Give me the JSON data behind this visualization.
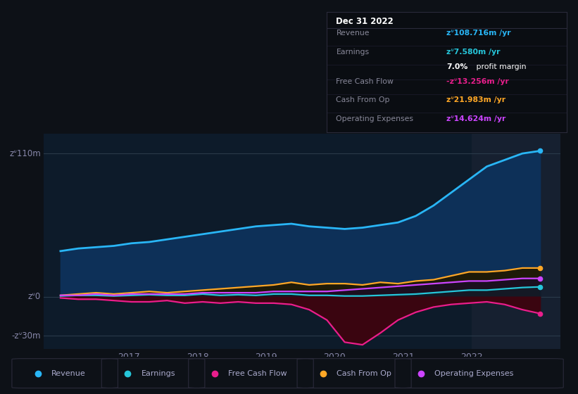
{
  "bg_color": "#0d1117",
  "plot_bg_color": "#0d1b2a",
  "grid_color": "#2a3a4a",
  "text_color": "#8888aa",
  "ylim": [
    -40,
    125
  ],
  "xtick_labels": [
    "2017",
    "2018",
    "2019",
    "2020",
    "2021",
    "2022"
  ],
  "series": {
    "revenue": {
      "color": "#29b6f6",
      "fill_color": "#0d3a5c",
      "label": "Revenue"
    },
    "earnings": {
      "color": "#26c6da",
      "fill_color": "#0d3a5c",
      "label": "Earnings"
    },
    "fcf": {
      "color": "#e91e8c",
      "fill_color": "#5a0a1e",
      "label": "Free Cash Flow"
    },
    "cashfromop": {
      "color": "#ffa726",
      "fill_color": "#2a2010",
      "label": "Cash From Op"
    },
    "opex": {
      "color": "#cc44ff",
      "fill_color": "#2a0a40",
      "label": "Operating Expenses"
    }
  },
  "tooltip": {
    "date": "Dec 31 2022",
    "bg_color": "#0a0d12",
    "border_color": "#2a2a3a"
  },
  "revenue_data": [
    35,
    37,
    38,
    39,
    41,
    42,
    44,
    46,
    48,
    50,
    52,
    54,
    55,
    56,
    54,
    53,
    52,
    53,
    55,
    57,
    62,
    70,
    80,
    90,
    100,
    105,
    110,
    112
  ],
  "earnings_data": [
    0.5,
    1,
    1,
    0.5,
    1,
    1.5,
    1,
    1,
    2,
    1,
    1.5,
    1,
    2,
    2,
    1,
    1,
    0.5,
    0.5,
    1,
    1.5,
    2,
    3,
    4,
    5,
    5,
    6,
    7,
    7.5
  ],
  "fcf_data": [
    -1,
    -2,
    -2,
    -3,
    -4,
    -4,
    -3,
    -5,
    -4,
    -5,
    -4,
    -5,
    -5,
    -6,
    -10,
    -18,
    -35,
    -37,
    -28,
    -18,
    -12,
    -8,
    -6,
    -5,
    -4,
    -6,
    -10,
    -13
  ],
  "cashfromop_data": [
    1,
    2,
    3,
    2,
    3,
    4,
    3,
    4,
    5,
    6,
    7,
    8,
    9,
    11,
    9,
    10,
    10,
    9,
    11,
    10,
    12,
    13,
    16,
    19,
    19,
    20,
    22,
    22
  ],
  "opex_data": [
    1,
    1,
    2,
    1,
    2,
    2,
    2,
    2,
    3,
    3,
    3,
    3,
    4,
    4,
    4,
    4,
    5,
    6,
    7,
    8,
    9,
    10,
    11,
    12,
    12,
    13,
    14,
    14
  ]
}
